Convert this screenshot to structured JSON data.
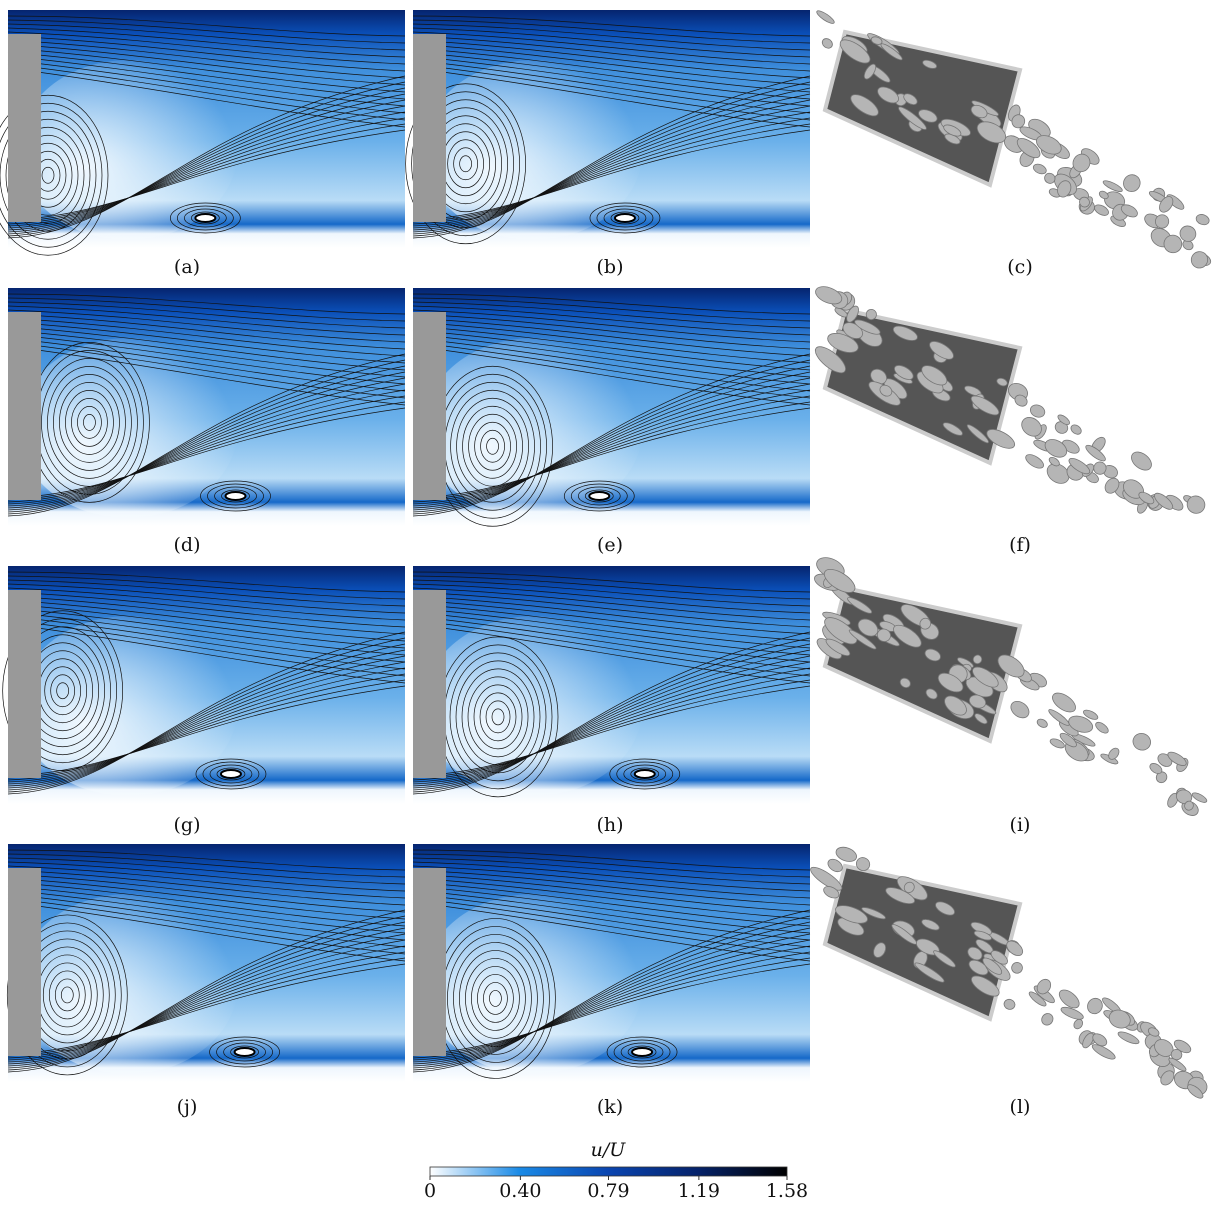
{
  "panels": [
    {
      "label": "(a)"
    },
    {
      "label": "(b)"
    },
    {
      "label": "(c)"
    },
    {
      "label": "(d)"
    },
    {
      "label": "(e)"
    },
    {
      "label": "(f)"
    },
    {
      "label": "(g)"
    },
    {
      "label": "(h)"
    },
    {
      "label": "(i)"
    },
    {
      "label": "(j)"
    },
    {
      "label": "(k)"
    },
    {
      "label": "(l)"
    }
  ],
  "colorbar": {
    "label": "u/U",
    "lim": [
      0,
      1.58
    ],
    "ticks": [
      0,
      {
        "value": 0.4,
        "label": "0.40"
      },
      0.79,
      1.19,
      1.58
    ]
  }
}
